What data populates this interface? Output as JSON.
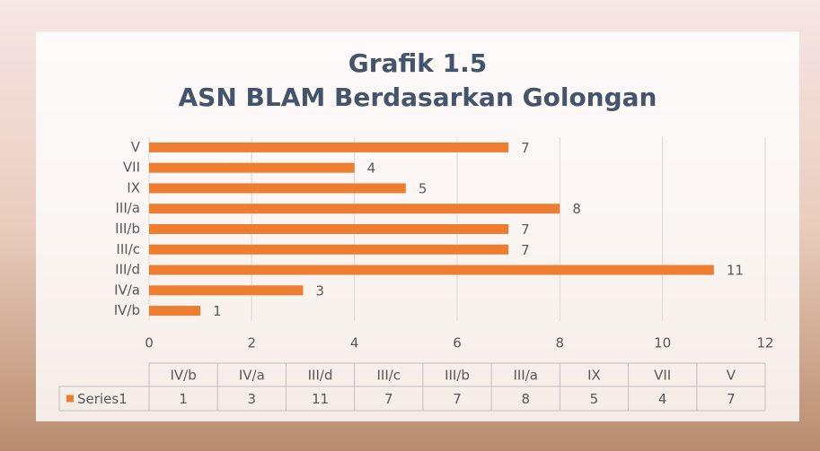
{
  "chart_data": {
    "type": "bar",
    "orientation": "horizontal",
    "title": [
      "Grafik 1.5",
      "ASN BLAM Berdasarkan Golongan"
    ],
    "categories": [
      "IV/b",
      "IV/a",
      "III/d",
      "III/c",
      "III/b",
      "III/a",
      "IX",
      "VII",
      "V"
    ],
    "series": [
      {
        "name": "Series1",
        "color": "#ED7D31",
        "values": [
          1,
          3,
          11,
          7,
          7,
          8,
          5,
          4,
          7
        ]
      }
    ],
    "xlim": [
      0,
      12
    ],
    "xticks": [
      0,
      2,
      4,
      6,
      8,
      10,
      12
    ],
    "grid": true,
    "data_table": true
  }
}
